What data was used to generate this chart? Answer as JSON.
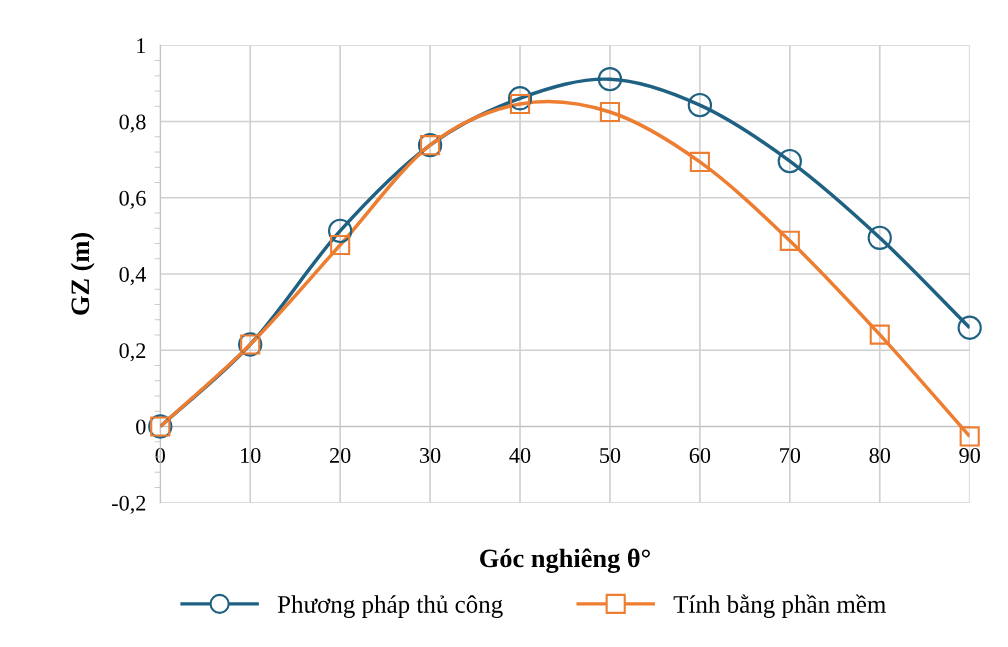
{
  "chart_data": {
    "type": "line",
    "xlabel": "Góc nghiêng θ°",
    "ylabel": "GZ (m)",
    "x": [
      0,
      10,
      20,
      30,
      40,
      50,
      60,
      70,
      80,
      90
    ],
    "series": [
      {
        "name": "Phương pháp thủ công",
        "color": "#1f6182",
        "marker": "circle",
        "values": [
          0,
          0.215,
          0.513,
          0.738,
          0.861,
          0.911,
          0.843,
          0.696,
          0.495,
          0.259
        ]
      },
      {
        "name": "Tính bằng phần mềm",
        "color": "#ed7d31",
        "marker": "square",
        "values": [
          0,
          0.215,
          0.476,
          0.738,
          0.846,
          0.825,
          0.694,
          0.487,
          0.241,
          -0.026
        ]
      }
    ],
    "xlim": [
      0,
      90
    ],
    "xticks": [
      0,
      10,
      20,
      30,
      40,
      50,
      60,
      70,
      80,
      90
    ],
    "ylim": [
      -0.2,
      1
    ],
    "yticks": [
      {
        "value": -0.2,
        "label": "-0,2"
      },
      0,
      {
        "value": 0.2,
        "label": "0,2"
      },
      {
        "value": 0.4,
        "label": "0,4"
      },
      {
        "value": 0.6,
        "label": "0,6"
      },
      {
        "value": 0.8,
        "label": "0,8"
      },
      1
    ],
    "grid": true,
    "legend": "bottom",
    "line_style": "solid"
  }
}
